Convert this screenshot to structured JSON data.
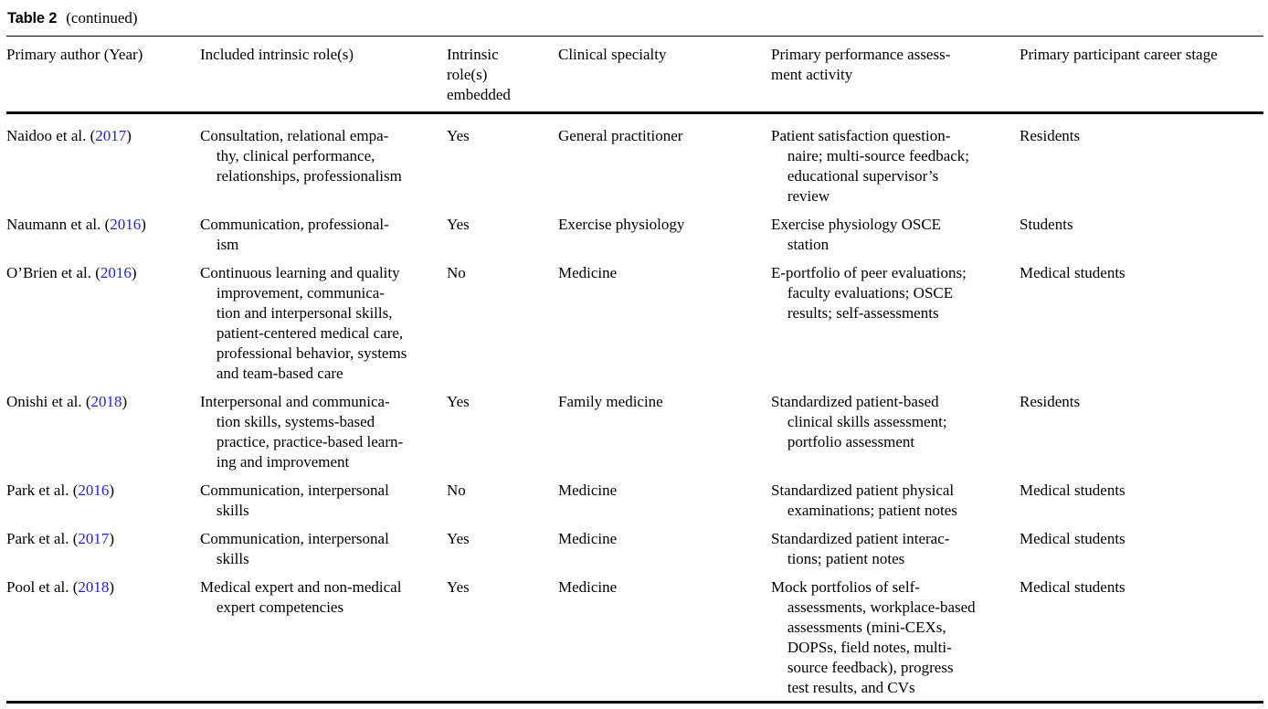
{
  "page": {
    "caption_label": "Table 2",
    "caption_note": "(continued)",
    "link_color": "#2323dd"
  },
  "table": {
    "columns": [
      "Primary author (Year)",
      "Included intrinsic role(s)",
      "Intrinsic\nrole(s)\nembedded",
      "Clinical specialty",
      "Primary performance assess-\nment activity",
      "Primary participant career stage"
    ],
    "rows": [
      {
        "author": "Naidoo et al.",
        "year": "2017",
        "roles": "Consultation, relational empa-\nthy, clinical performance,\nrelationships, professionalism",
        "embedded": "Yes",
        "specialty": "General practitioner",
        "assessment": "Patient satisfaction question-\nnaire; multi-source feedback;\neducational supervisor’s\nreview",
        "stage": "Residents"
      },
      {
        "author": "Naumann et al.",
        "year": "2016",
        "roles": "Communication, professional-\nism",
        "embedded": "Yes",
        "specialty": "Exercise physiology",
        "assessment": "Exercise physiology OSCE\nstation",
        "stage": "Students"
      },
      {
        "author": "O’Brien et al.",
        "year": "2016",
        "roles": "Continuous learning and quality\nimprovement, communica-\ntion and interpersonal skills,\npatient-centered medical care,\nprofessional behavior, systems\nand team-based care",
        "embedded": "No",
        "specialty": "Medicine",
        "assessment": "E-portfolio of peer evaluations;\nfaculty evaluations; OSCE\nresults; self-assessments",
        "stage": "Medical students"
      },
      {
        "author": "Onishi et al.",
        "year": "2018",
        "roles": "Interpersonal and communica-\ntion skills, systems-based\npractice, practice-based learn-\ning and improvement",
        "embedded": "Yes",
        "specialty": "Family medicine",
        "assessment": "Standardized patient-based\nclinical skills assessment;\nportfolio assessment",
        "stage": "Residents"
      },
      {
        "author": "Park et al.",
        "year": "2016",
        "roles": "Communication, interpersonal\nskills",
        "embedded": "No",
        "specialty": "Medicine",
        "assessment": "Standardized patient physical\nexaminations; patient notes",
        "stage": "Medical students"
      },
      {
        "author": "Park et al.",
        "year": "2017",
        "roles": "Communication, interpersonal\nskills",
        "embedded": "Yes",
        "specialty": "Medicine",
        "assessment": "Standardized patient interac-\ntions; patient notes",
        "stage": "Medical students"
      },
      {
        "author": "Pool et al.",
        "year": "2018",
        "roles": "Medical expert and non-medical\nexpert competencies",
        "embedded": "Yes",
        "specialty": "Medicine",
        "assessment": "Mock portfolios of self-\nassessments, workplace-based\nassessments (mini-CEXs,\nDOPSs, field notes, multi-\nsource feedback), progress\ntest results, and CVs",
        "stage": "Medical students"
      }
    ]
  }
}
